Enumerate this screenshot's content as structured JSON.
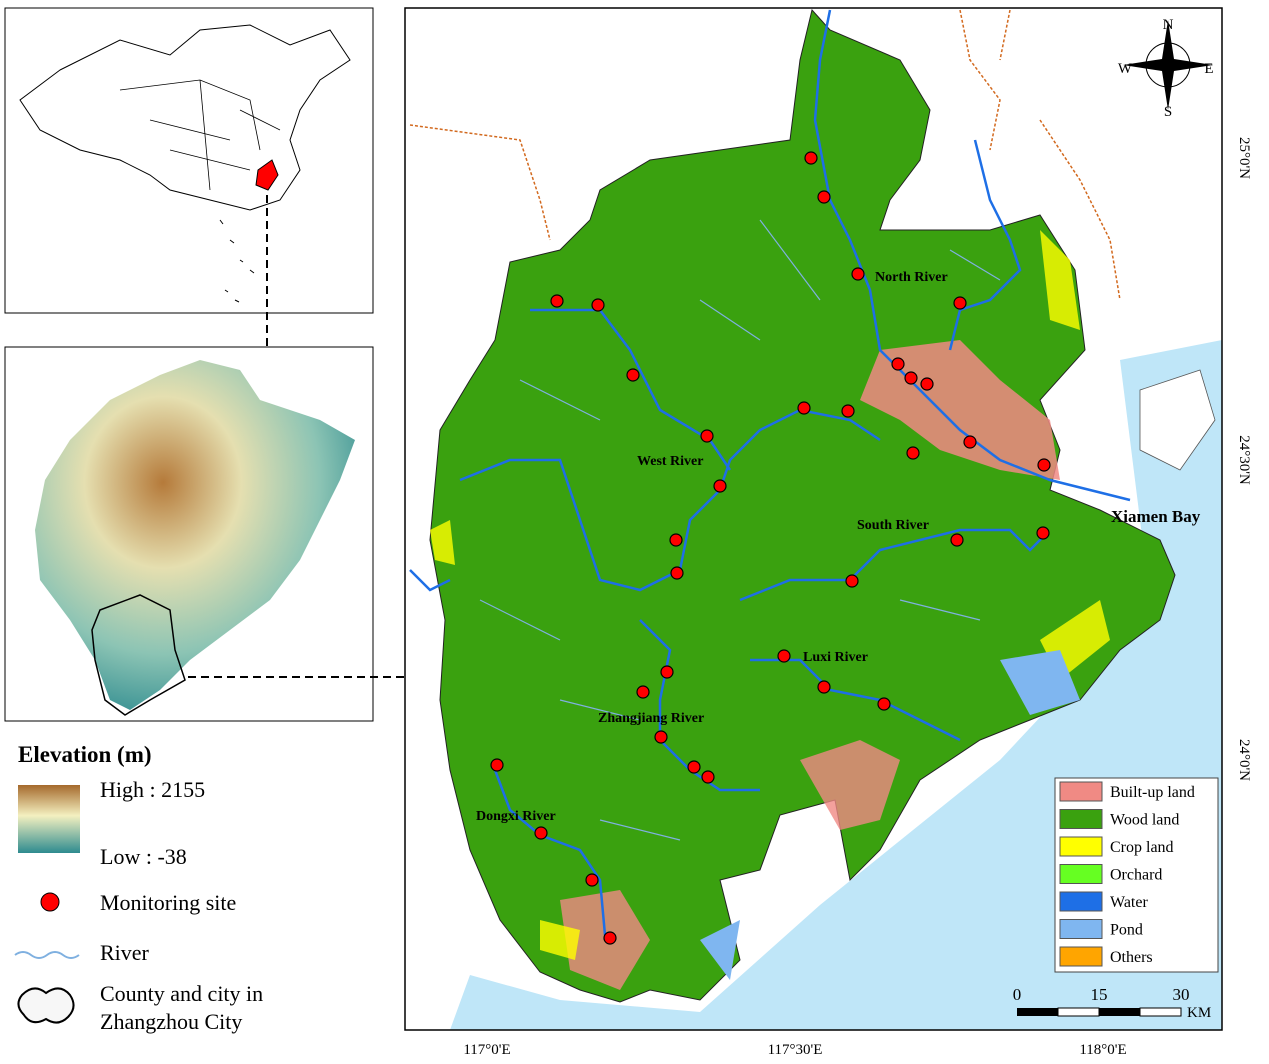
{
  "legend": {
    "elevation_title": "Elevation (m)",
    "high": "High : 2155",
    "low": "Low : -38",
    "site": "Monitoring site",
    "river": "River",
    "county": "County and city in Zhangzhou City"
  },
  "land_use": [
    {
      "name": "Built-up land",
      "color": "#f08a84"
    },
    {
      "name": "Wood land",
      "color": "#3aa10f"
    },
    {
      "name": "Crop land",
      "color": "#ffff00"
    },
    {
      "name": "Orchard",
      "color": "#66ff22"
    },
    {
      "name": "Water",
      "color": "#1e6fe6"
    },
    {
      "name": "Pond",
      "color": "#7fb6f0"
    },
    {
      "name": "Others",
      "color": "#ffa500"
    }
  ],
  "map_labels": {
    "north_river": "North River",
    "west_river": "West River",
    "south_river": "South River",
    "xiamen_bay": "Xiamen Bay",
    "luxi_river": "Luxi River",
    "zhangjiang_river": "Zhangjiang River",
    "dongxi_river": "Dongxi River"
  },
  "compass": {
    "n": "N",
    "s": "S",
    "e": "E",
    "w": "W"
  },
  "scale_bar": {
    "ticks": [
      "0",
      "15",
      "30"
    ],
    "unit": "KM"
  },
  "longitude_labels": [
    "117°0'E",
    "117°30'E",
    "118°0'E"
  ],
  "latitude_labels": [
    "25°0'N",
    "24°30'N",
    "24°0'N"
  ]
}
